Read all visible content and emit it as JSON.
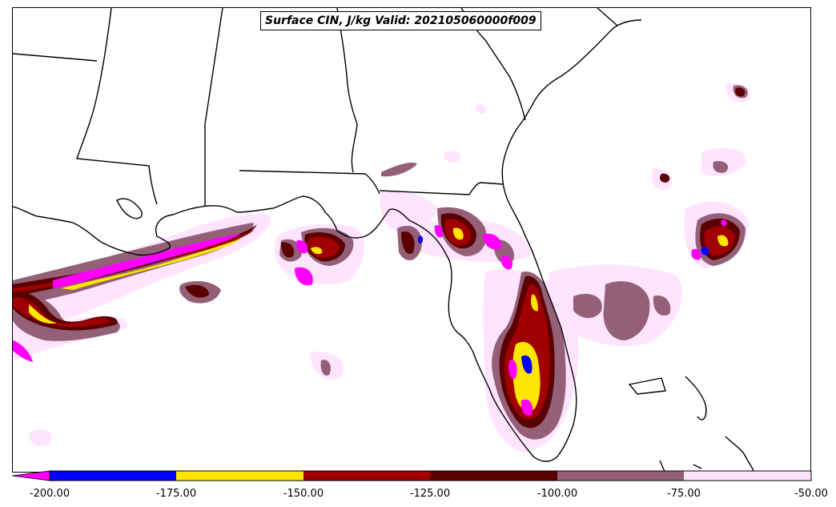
{
  "title": "Surface CIN, J/kg Valid: 202105060000f009",
  "colorbar": {
    "labels": [
      "-200.00",
      "-175.00",
      "-150.00",
      "-125.00",
      "-100.00",
      "-75.00",
      "-50.00"
    ],
    "colors": [
      "#0000ff",
      "#ffe600",
      "#a00000",
      "#5a0000",
      "#946078",
      "#ffe4ff"
    ],
    "extend_color": "#ff00ff"
  },
  "legend_palette": {
    "lt_m200": "#ff00ff",
    "m200_m175": "#0000ff",
    "m175_m150": "#ffe600",
    "m150_m125": "#a00000",
    "m125_m100": "#5a0000",
    "m100_m75": "#946078",
    "m75_m50": "#ffe4ff"
  }
}
